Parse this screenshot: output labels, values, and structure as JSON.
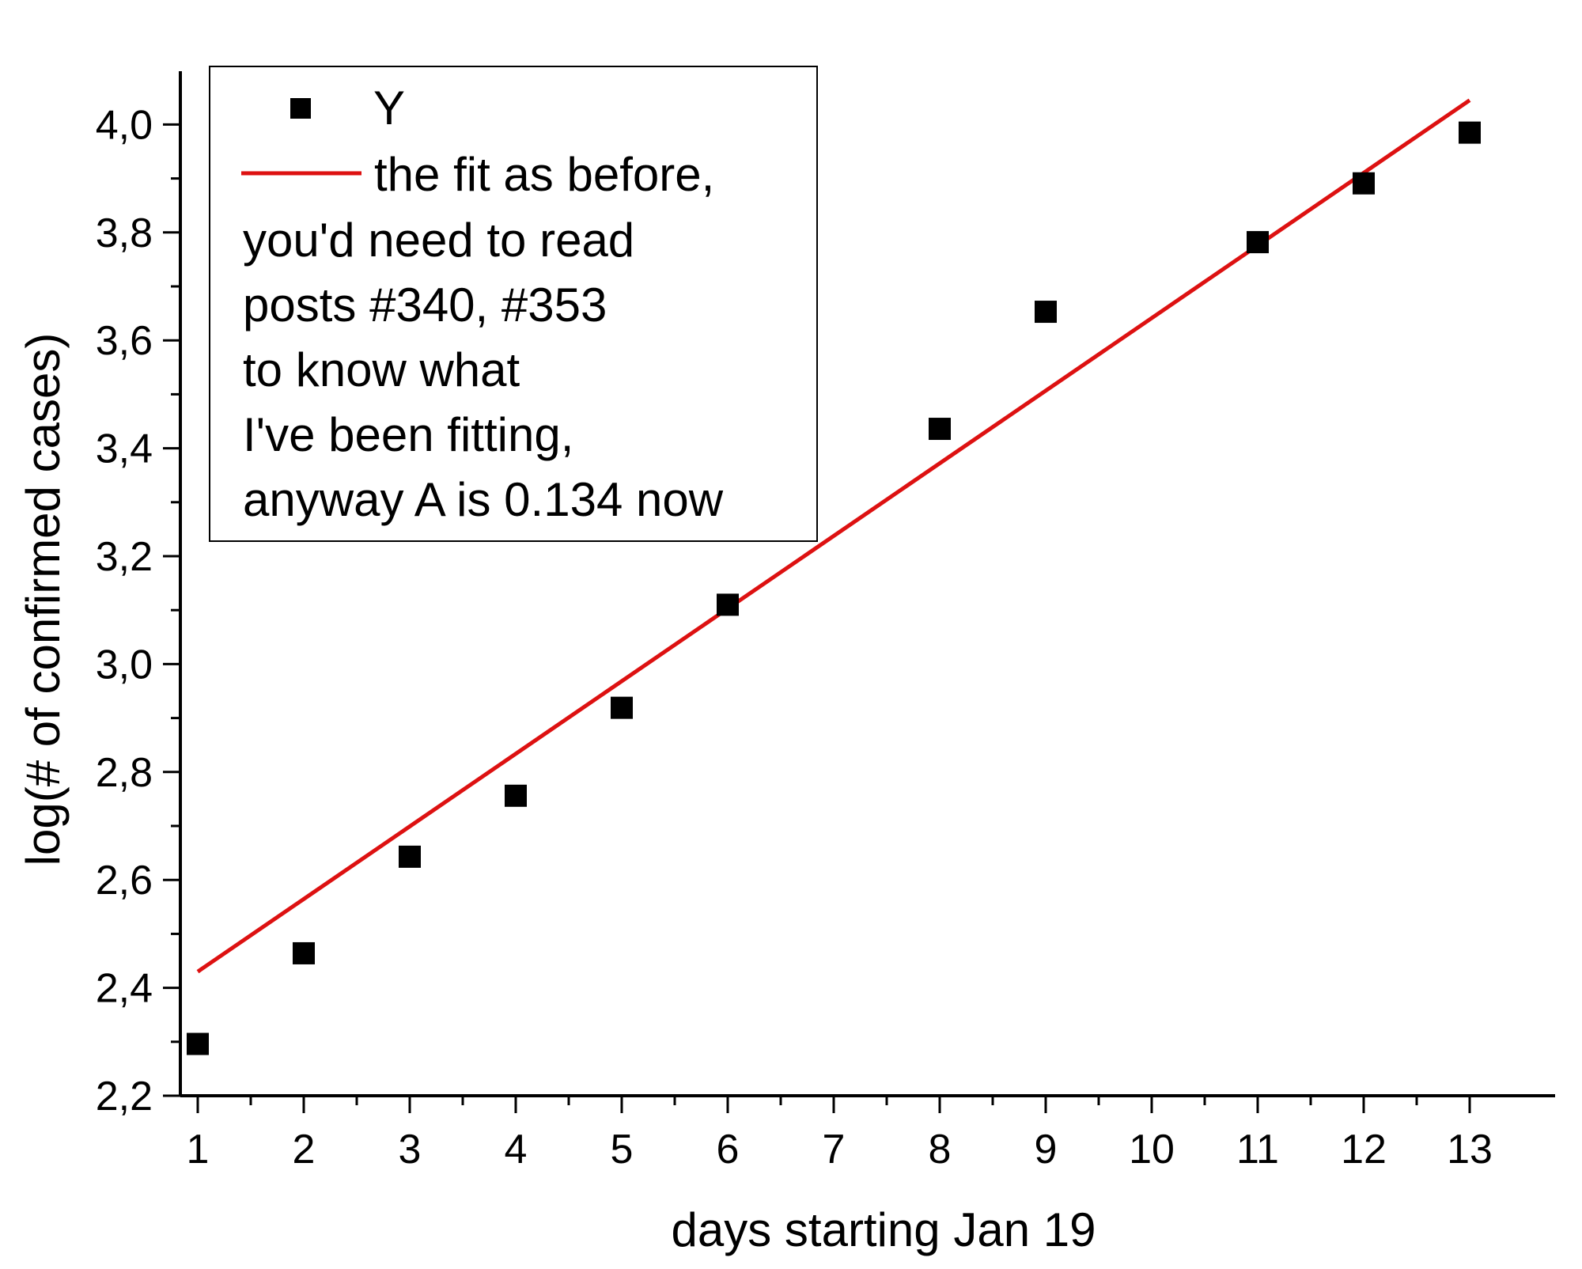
{
  "chart_data": {
    "type": "scatter",
    "xlabel": "days starting Jan 19",
    "ylabel": "log(# of confirmed cases)",
    "xlim": [
      0.65,
      14.1
    ],
    "ylim": [
      2.2,
      4.1
    ],
    "x_ticks": [
      1,
      2,
      3,
      4,
      5,
      6,
      7,
      8,
      9,
      10,
      11,
      12,
      13
    ],
    "x_tick_labels": [
      "1",
      "2",
      "3",
      "4",
      "5",
      "6",
      "7",
      "8",
      "9",
      "10",
      "11",
      "12",
      "13"
    ],
    "y_ticks": [
      2.2,
      2.4,
      2.6,
      2.8,
      3.0,
      3.2,
      3.4,
      3.6,
      3.8,
      4.0
    ],
    "y_tick_labels": [
      "2,2",
      "2,4",
      "2,6",
      "2,8",
      "3,0",
      "3,2",
      "3,4",
      "3,6",
      "3,8",
      "4,0"
    ],
    "series": [
      {
        "name": "Y",
        "marker": "square",
        "color": "#000000",
        "x": [
          1,
          2,
          3,
          4,
          5,
          6,
          8,
          9,
          11,
          12,
          13
        ],
        "y": [
          2.296,
          2.464,
          2.643,
          2.756,
          2.919,
          3.11,
          3.436,
          3.653,
          3.782,
          3.891,
          3.985
        ]
      },
      {
        "name": "the fit as before,",
        "type": "line",
        "color": "#dd1111",
        "x": [
          1,
          13
        ],
        "y": [
          2.43,
          4.045
        ]
      }
    ],
    "legend": {
      "position": "top-left",
      "entries": [
        "Y",
        "the fit as before,"
      ],
      "extra_lines": [
        "you'd need to read",
        "posts #340, #353",
        "to know what",
        "I've been fitting,",
        "anyway A is 0.134 now"
      ]
    },
    "grid": false
  }
}
